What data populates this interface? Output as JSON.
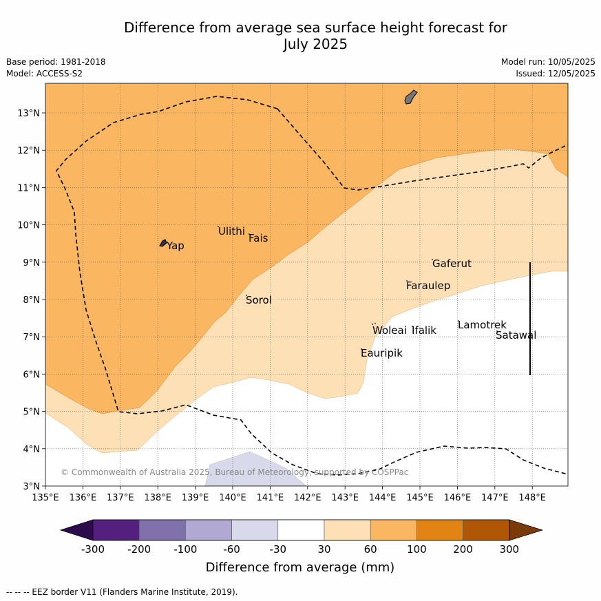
{
  "title_line1": "Difference from average sea surface height forecast for",
  "title_line2": "July 2025",
  "base_period": "Base period: 1981-2018",
  "model": "Model: ACCESS-S2",
  "model_run": "Model run: 10/05/2025",
  "issued": "Issued: 12/05/2025",
  "lon_labels": [
    "135°E",
    "136°E",
    "137°E",
    "138°E",
    "139°E",
    "140°E",
    "141°E",
    "142°E",
    "143°E",
    "144°E",
    "145°E",
    "146°E",
    "147°E",
    "148°E"
  ],
  "lat_labels": [
    "3°N",
    "4°N",
    "5°N",
    "6°N",
    "7°N",
    "8°N",
    "9°N",
    "10°N",
    "11°N",
    "12°N",
    "13°N"
  ],
  "places": {
    "yap": "Yap",
    "ulithi": "Ulithi",
    "fais": "Fais",
    "sorol": "Sorol",
    "gaferut": "Gaferut",
    "faraulep": "Faraulep",
    "lamotrek": "Lamotrek",
    "satawal": "Satawal",
    "woleai": "Woleai",
    "ifalik": "Ifalik",
    "eauripik": "Eauripik"
  },
  "copyright": "© Commonwealth of Australia 2025, Bureau of Meteorology, supported by COSPPac",
  "colorbar": {
    "ticks": [
      "-300",
      "-200",
      "-100",
      "-60",
      "-30",
      "30",
      "60",
      "100",
      "200",
      "300"
    ],
    "colors": [
      "#2d0c4d",
      "#54207f",
      "#8070ac",
      "#b1a9d3",
      "#d9d9ec",
      "#ffffff",
      "#fde0b5",
      "#fbb662",
      "#e28413",
      "#b05705",
      "#7b3a0a"
    ],
    "title": "Difference from average (mm)"
  },
  "legend_footnote": "-- -- -- EEZ border V11 (Flanders Marine Institute, 2019)."
}
